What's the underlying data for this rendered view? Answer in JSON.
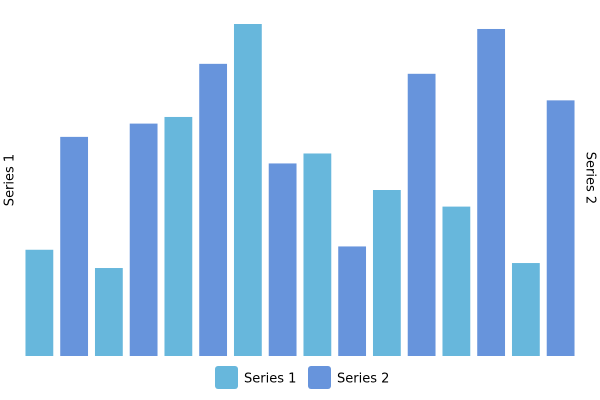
{
  "chart_data": {
    "type": "bar",
    "categories": [
      null,
      null,
      null,
      null,
      null,
      null,
      null,
      null
    ],
    "ylabel": "Series 1",
    "y2label": "Series 2",
    "ylim": [
      0,
      100
    ],
    "y2lim": [
      0,
      100
    ],
    "legend": "bottom",
    "series": [
      {
        "name": "Series 1",
        "color": "#67b7dc",
        "values": [
          32,
          26.5,
          72,
          100,
          61,
          50,
          45,
          28
        ]
      },
      {
        "name": "Series 2",
        "color": "#6794dc",
        "axis": "y2",
        "values": [
          66,
          70,
          88,
          58,
          33,
          85,
          98.5,
          77
        ]
      }
    ]
  }
}
